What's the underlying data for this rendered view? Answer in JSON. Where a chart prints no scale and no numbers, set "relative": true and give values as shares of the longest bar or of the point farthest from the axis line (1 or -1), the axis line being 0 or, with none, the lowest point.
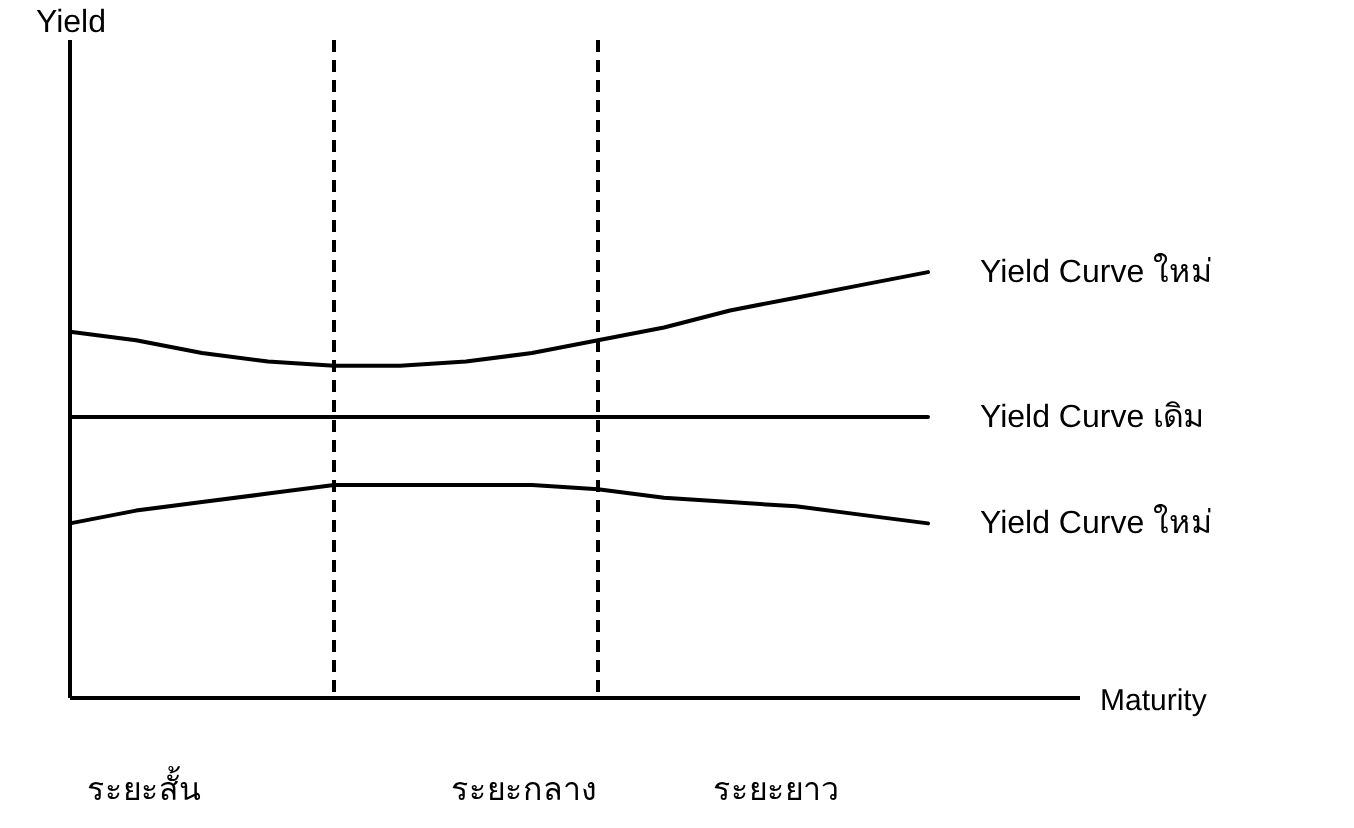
{
  "chart_data": {
    "type": "line",
    "relative": true,
    "xlabel": "Maturity",
    "categories": [
      null,
      null,
      null,
      null,
      null,
      null,
      null,
      null,
      null,
      null,
      null,
      null,
      null,
      null
    ],
    "series": [
      {
        "name": "Yield Curve ใหม่",
        "color": "#000000",
        "values": [
          0.86,
          0.84,
          0.81,
          0.79,
          0.78,
          0.78,
          0.79,
          0.81,
          0.84,
          0.87,
          0.91,
          0.94,
          0.97,
          1.0
        ]
      },
      {
        "name": "Yield Curve เดิม",
        "color": "#000000",
        "values": [
          0.66,
          0.66,
          0.66,
          0.66,
          0.66,
          0.66,
          0.66,
          0.66,
          0.66,
          0.66,
          0.66,
          0.66,
          0.66,
          0.66
        ]
      },
      {
        "name": "Yield Curve ใหม่",
        "color": "#000000",
        "values": [
          0.41,
          0.44,
          0.46,
          0.48,
          0.5,
          0.5,
          0.5,
          0.5,
          0.49,
          0.47,
          0.46,
          0.45,
          0.43,
          0.41
        ]
      }
    ],
    "annotations": [
      "Yield",
      "ระยะสั้น",
      "ระยะกลาง",
      "ระยะยาว"
    ]
  }
}
